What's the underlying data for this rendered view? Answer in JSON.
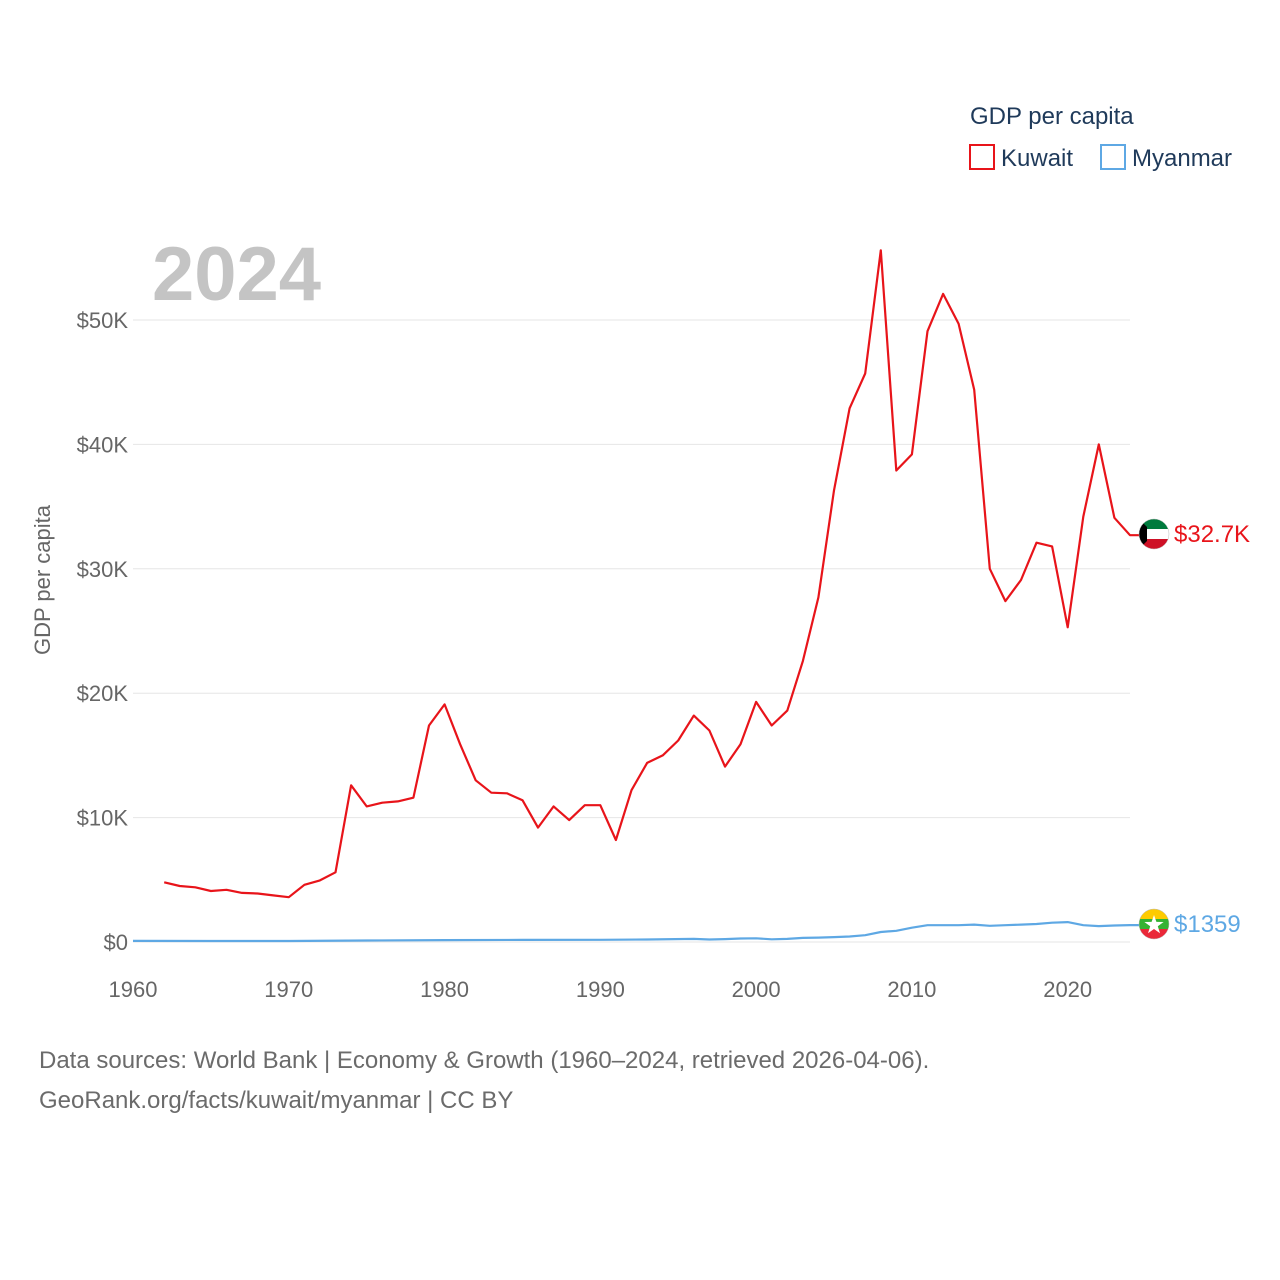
{
  "chart_data": {
    "type": "line",
    "year_label": "2024",
    "ylabel": "GDP per capita",
    "ylim": [
      0,
      55000
    ],
    "xlim": [
      1960,
      2024
    ],
    "y_ticks": [
      {
        "value": 0,
        "label": "$0"
      },
      {
        "value": 10000,
        "label": "$10K"
      },
      {
        "value": 20000,
        "label": "$20K"
      },
      {
        "value": 30000,
        "label": "$30K"
      },
      {
        "value": 40000,
        "label": "$40K"
      },
      {
        "value": 50000,
        "label": "$50K"
      }
    ],
    "x_ticks": [
      {
        "value": 1960,
        "label": "1960"
      },
      {
        "value": 1970,
        "label": "1970"
      },
      {
        "value": 1980,
        "label": "1980"
      },
      {
        "value": 1990,
        "label": "1990"
      },
      {
        "value": 2000,
        "label": "2000"
      },
      {
        "value": 2010,
        "label": "2010"
      },
      {
        "value": 2020,
        "label": "2020"
      }
    ],
    "legend_title": "GDP per capita",
    "series": [
      {
        "name": "Kuwait",
        "color": "#e8141a",
        "end_label": "$32.7K",
        "flag": "kuwait-flag",
        "x": [
          1962,
          1963,
          1964,
          1965,
          1966,
          1967,
          1968,
          1969,
          1970,
          1971,
          1972,
          1973,
          1974,
          1975,
          1976,
          1977,
          1978,
          1979,
          1980,
          1981,
          1982,
          1983,
          1984,
          1985,
          1986,
          1987,
          1988,
          1989,
          1990,
          1991,
          1992,
          1993,
          1994,
          1995,
          1996,
          1997,
          1998,
          1999,
          2000,
          2001,
          2002,
          2003,
          2004,
          2005,
          2006,
          2007,
          2008,
          2009,
          2010,
          2011,
          2012,
          2013,
          2014,
          2015,
          2016,
          2017,
          2018,
          2019,
          2020,
          2021,
          2022,
          2023,
          2024
        ],
        "values": [
          4800,
          4500,
          4400,
          4100,
          4200,
          3950,
          3900,
          3750,
          3600,
          4600,
          4950,
          5600,
          12600,
          10900,
          11200,
          11300,
          11600,
          17400,
          19100,
          15900,
          13000,
          12000,
          11950,
          11400,
          9200,
          10900,
          9800,
          11000,
          11000,
          8200,
          12200,
          14400,
          15000,
          16200,
          18200,
          17000,
          14100,
          15900,
          19300,
          17400,
          18600,
          22600,
          27700,
          36300,
          42900,
          45700,
          55600,
          37900,
          39200,
          49100,
          52100,
          49700,
          44400,
          30000,
          27400,
          29100,
          32100,
          31800,
          25300,
          34200,
          40000,
          34100,
          32700
        ]
      },
      {
        "name": "Myanmar",
        "color": "#5ea8e4",
        "end_label": "$1359",
        "flag": "myanmar-flag",
        "x": [
          1960,
          1965,
          1970,
          1975,
          1980,
          1985,
          1990,
          1993,
          1996,
          1997,
          1998,
          1999,
          2000,
          2001,
          2002,
          2003,
          2004,
          2005,
          2006,
          2007,
          2008,
          2009,
          2010,
          2011,
          2012,
          2013,
          2014,
          2015,
          2016,
          2017,
          2018,
          2019,
          2020,
          2021,
          2022,
          2023,
          2024
        ],
        "values": [
          90,
          80,
          80,
          120,
          150,
          170,
          180,
          200,
          250,
          200,
          230,
          280,
          300,
          220,
          250,
          330,
          350,
          390,
          440,
          550,
          800,
          900,
          1150,
          1350,
          1350,
          1350,
          1400,
          1300,
          1350,
          1400,
          1450,
          1550,
          1600,
          1350,
          1280,
          1330,
          1359
        ]
      }
    ],
    "source_line1": "Data sources: World Bank | Economy & Growth (1960–2024, retrieved 2026-04-06).",
    "source_line2": "GeoRank.org/facts/kuwait/myanmar | CC BY"
  }
}
